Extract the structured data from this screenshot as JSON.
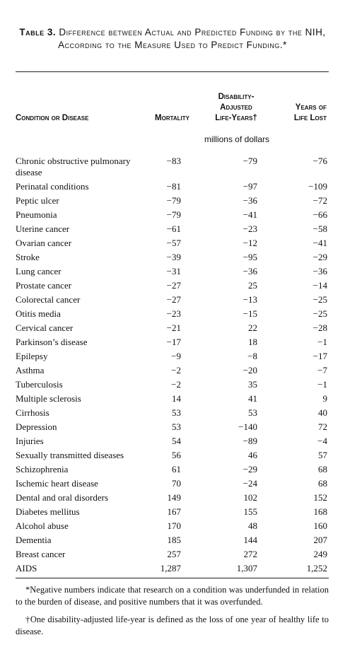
{
  "caption": {
    "number": "Table 3.",
    "text": "Difference between Actual and Predicted Funding by the NIH, According to the Measure Used to Predict Funding.*"
  },
  "headers": {
    "condition": "Condition or Disease",
    "mortality": "Mortality",
    "daly_line1": "Disability-",
    "daly_line2": "Adjusted",
    "daly_line3": "Life-Years†",
    "yll_line1": "Years of",
    "yll_line2": "Life Lost"
  },
  "units": "millions of dollars",
  "rows": [
    {
      "name": "Chronic obstructive pulmonary disease",
      "mortality": "−83",
      "daly": "−79",
      "yll": "−76"
    },
    {
      "name": "Perinatal conditions",
      "mortality": "−81",
      "daly": "−97",
      "yll": "−109"
    },
    {
      "name": "Peptic ulcer",
      "mortality": "−79",
      "daly": "−36",
      "yll": "−72"
    },
    {
      "name": "Pneumonia",
      "mortality": "−79",
      "daly": "−41",
      "yll": "−66"
    },
    {
      "name": "Uterine cancer",
      "mortality": "−61",
      "daly": "−23",
      "yll": "−58"
    },
    {
      "name": "Ovarian cancer",
      "mortality": "−57",
      "daly": "−12",
      "yll": "−41"
    },
    {
      "name": "Stroke",
      "mortality": "−39",
      "daly": "−95",
      "yll": "−29"
    },
    {
      "name": "Lung cancer",
      "mortality": "−31",
      "daly": "−36",
      "yll": "−36"
    },
    {
      "name": "Prostate cancer",
      "mortality": "−27",
      "daly": "25",
      "yll": "−14"
    },
    {
      "name": "Colorectal cancer",
      "mortality": "−27",
      "daly": "−13",
      "yll": "−25"
    },
    {
      "name": "Otitis media",
      "mortality": "−23",
      "daly": "−15",
      "yll": "−25"
    },
    {
      "name": "Cervical cancer",
      "mortality": "−21",
      "daly": "22",
      "yll": "−28"
    },
    {
      "name": "Parkinson’s disease",
      "mortality": "−17",
      "daly": "18",
      "yll": "−1"
    },
    {
      "name": "Epilepsy",
      "mortality": "−9",
      "daly": "−8",
      "yll": "−17"
    },
    {
      "name": "Asthma",
      "mortality": "−2",
      "daly": "−20",
      "yll": "−7"
    },
    {
      "name": "Tuberculosis",
      "mortality": "−2",
      "daly": "35",
      "yll": "−1"
    },
    {
      "name": "Multiple sclerosis",
      "mortality": "14",
      "daly": "41",
      "yll": "9"
    },
    {
      "name": "Cirrhosis",
      "mortality": "53",
      "daly": "53",
      "yll": "40"
    },
    {
      "name": "Depression",
      "mortality": "53",
      "daly": "−140",
      "yll": "72"
    },
    {
      "name": "Injuries",
      "mortality": "54",
      "daly": "−89",
      "yll": "−4"
    },
    {
      "name": "Sexually transmitted diseases",
      "mortality": "56",
      "daly": "46",
      "yll": "57"
    },
    {
      "name": "Schizophrenia",
      "mortality": "61",
      "daly": "−29",
      "yll": "68"
    },
    {
      "name": "Ischemic heart disease",
      "mortality": "70",
      "daly": "−24",
      "yll": "68"
    },
    {
      "name": "Dental and oral disorders",
      "mortality": "149",
      "daly": "102",
      "yll": "152"
    },
    {
      "name": "Diabetes mellitus",
      "mortality": "167",
      "daly": "155",
      "yll": "168"
    },
    {
      "name": "Alcohol abuse",
      "mortality": "170",
      "daly": "48",
      "yll": "160"
    },
    {
      "name": "Dementia",
      "mortality": "185",
      "daly": "144",
      "yll": "207"
    },
    {
      "name": "Breast cancer",
      "mortality": "257",
      "daly": "272",
      "yll": "249"
    },
    {
      "name": "AIDS",
      "mortality": "1,287",
      "daly": "1,307",
      "yll": "1,252"
    }
  ],
  "footnotes": {
    "star": "*Negative numbers indicate that research on a condition was underfunded in relation to the burden of disease, and positive numbers that it was overfunded.",
    "dagger": "†One disability-adjusted life-year is defined as the loss of one year of healthy life to disease."
  }
}
